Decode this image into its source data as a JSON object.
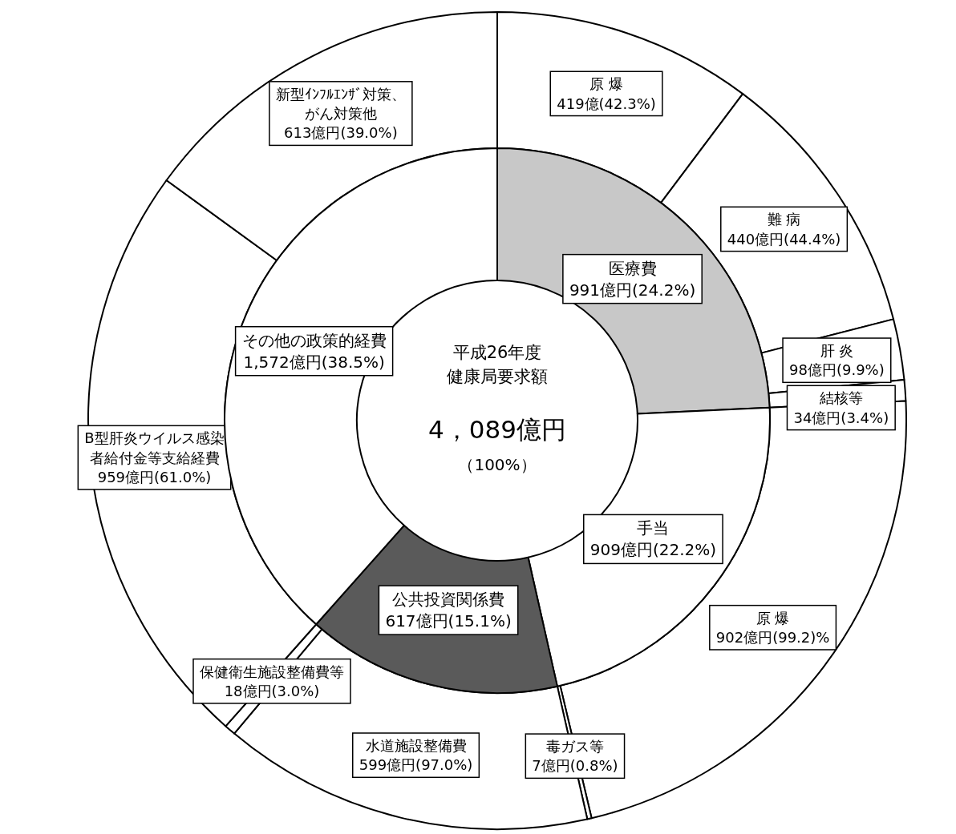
{
  "chart_data": [
    {
      "type": "donut",
      "title": "平成26年度",
      "subtitle": "健康局要求額",
      "annotations": [
        "4，089億円",
        "（100%）"
      ],
      "categories": [
        "医療費",
        "手当",
        "公共投資関係費",
        "その他の政策的経費"
      ],
      "values": [
        991,
        909,
        617,
        1572
      ],
      "value_labels": [
        "991億円(24.2%)",
        "909億円(22.2%)",
        "617億円(15.1%)",
        "1,572億円(38.5%)"
      ],
      "colors": [
        "#c8c8c8",
        "#ffffff",
        "#5a5a5a",
        "#ffffff"
      ]
    },
    {
      "type": "donut",
      "categories": [
        "原 爆",
        "難 病",
        "肝 炎",
        "結核等",
        "原 爆",
        "毒ガス等",
        "水道施設整備費",
        "保健衛生施設整備費等",
        "B型肝炎ウイルス感染者給付金等支給経費",
        "新型ｲﾝﾌﾙｴﾝｻﾞ対策、がん対策他"
      ],
      "values": [
        419,
        440,
        98,
        34,
        902,
        7,
        599,
        18,
        959,
        613
      ],
      "value_labels": [
        "419億(42.3%)",
        "440億円(44.4%)",
        "98億円(9.9%)",
        "34億円(3.4%)",
        "902億円(99.2)%",
        "7億円(0.8%)",
        "599億円(97.0%)",
        "18億円(3.0%)",
        "959億円(61.0%)",
        "613億円(39.0%)"
      ],
      "colors": [
        "#ffffff",
        "#ffffff",
        "#ffffff",
        "#ffffff",
        "#ffffff",
        "#ffffff",
        "#ffffff",
        "#ffffff",
        "#ffffff",
        "#ffffff"
      ]
    }
  ]
}
